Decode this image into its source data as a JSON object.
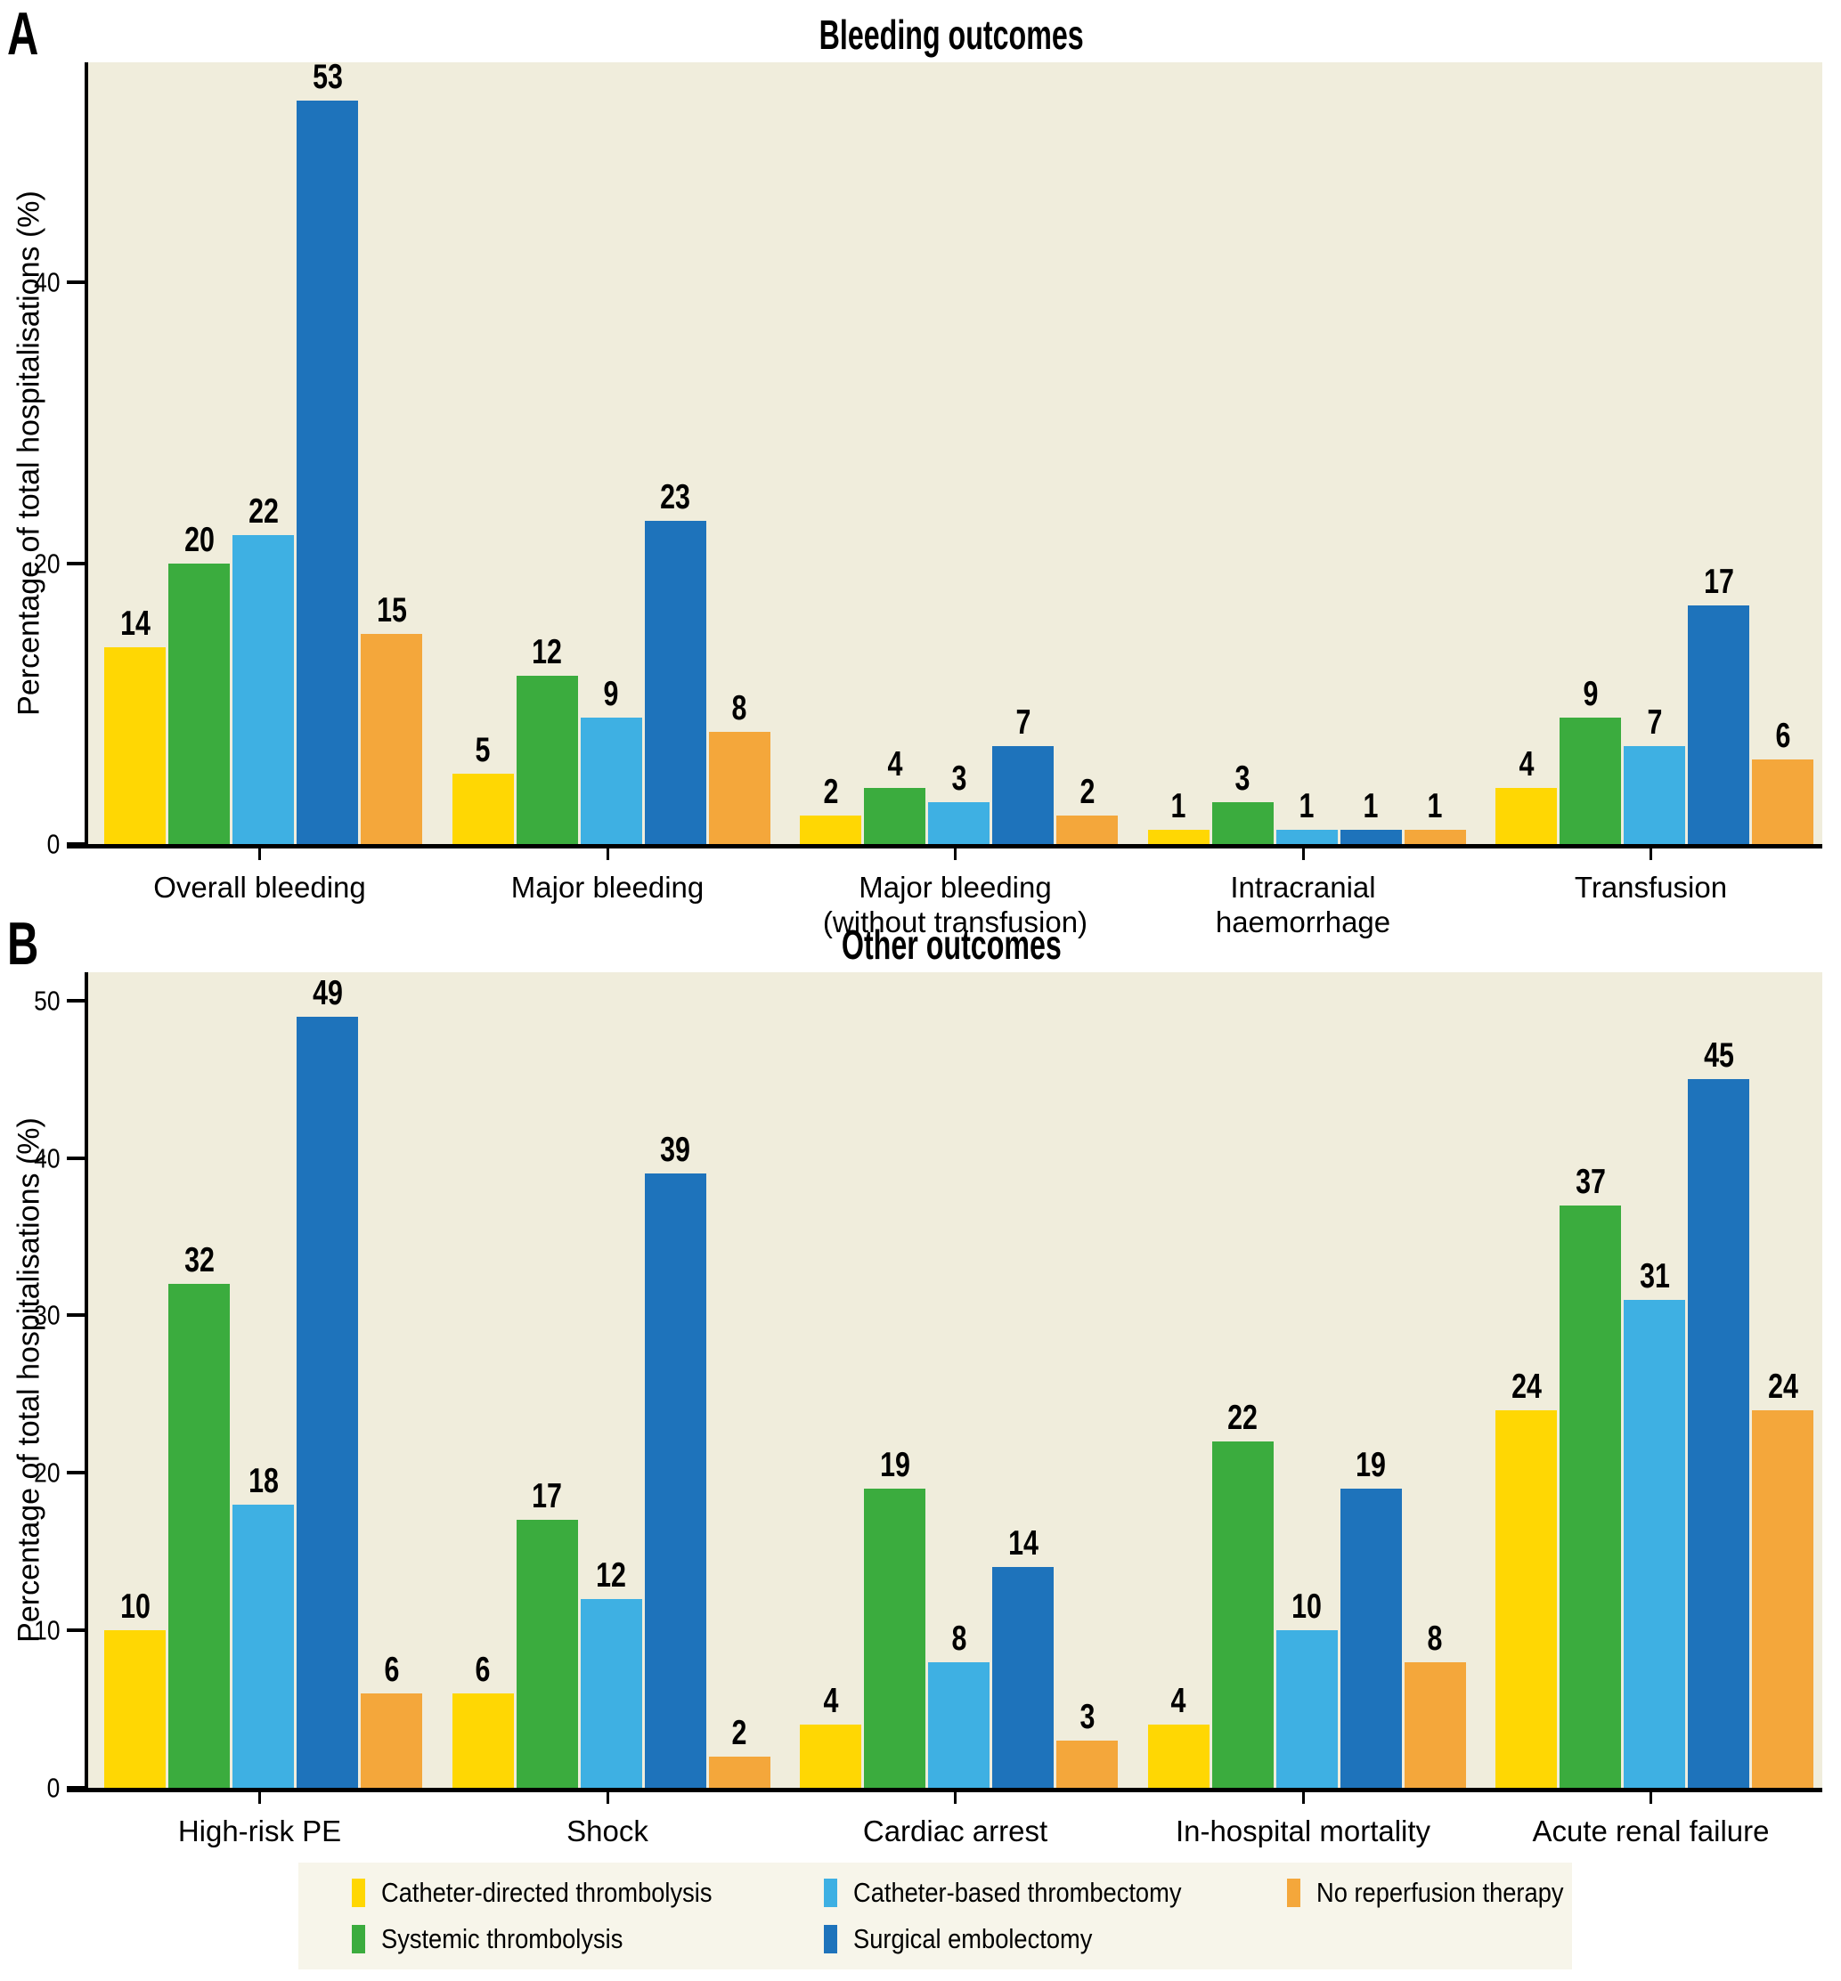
{
  "figure": {
    "panel_a_letter": "A",
    "panel_b_letter": "B"
  },
  "colors": {
    "catheter_directed_thrombolysis": "#FFD703",
    "systemic_thrombolysis": "#3BAC3E",
    "catheter_based_thrombectomy": "#3EB0E3",
    "surgical_embolectomy": "#1E73BB",
    "no_reperfusion_therapy": "#F4A73B",
    "plot_background": "#F0EDDC",
    "legend_background": "#F7F5EA",
    "axis": "#000000"
  },
  "chart_data": [
    {
      "type": "bar",
      "panel": "A",
      "title": "Bleeding outcomes",
      "ylabel": "Percentage of total hospitalisations (%)",
      "ylim": [
        0,
        55.7
      ],
      "yticks": [
        0,
        20,
        40
      ],
      "grid": false,
      "categories": [
        "Overall bleeding",
        "Major bleeding",
        "Major bleeding (without transfusion)",
        "Intracranial haemorrhage",
        "Transfusion"
      ],
      "category_lines": [
        [
          "Overall bleeding"
        ],
        [
          "Major bleeding"
        ],
        [
          "Major bleeding",
          "(without transfusion)"
        ],
        [
          "Intracranial haemorrhage"
        ],
        [
          "Transfusion"
        ]
      ],
      "series": [
        {
          "name": "Catheter-directed thrombolysis",
          "color": "#FFD703",
          "values": [
            14,
            5,
            2,
            1,
            4
          ]
        },
        {
          "name": "Systemic thrombolysis",
          "color": "#3BAC3E",
          "values": [
            20,
            12,
            4,
            3,
            9
          ]
        },
        {
          "name": "Catheter-based thrombectomy",
          "color": "#3EB0E3",
          "values": [
            22,
            9,
            3,
            1,
            7
          ]
        },
        {
          "name": "Surgical embolectomy",
          "color": "#1E73BB",
          "values": [
            53,
            23,
            7,
            1,
            17
          ]
        },
        {
          "name": "No reperfusion therapy",
          "color": "#F4A73B",
          "values": [
            15,
            8,
            2,
            1,
            6
          ]
        }
      ]
    },
    {
      "type": "bar",
      "panel": "B",
      "title": "Other outcomes",
      "ylabel": "Percentage of total hospitalisations (%)",
      "ylim": [
        0,
        51.8
      ],
      "yticks": [
        0,
        10,
        20,
        30,
        40,
        50
      ],
      "grid": false,
      "categories": [
        "High-risk PE",
        "Shock",
        "Cardiac arrest",
        "In-hospital mortality",
        "Acute renal failure"
      ],
      "category_lines": [
        [
          "High-risk PE"
        ],
        [
          "Shock"
        ],
        [
          "Cardiac arrest"
        ],
        [
          "In-hospital mortality"
        ],
        [
          "Acute renal failure"
        ]
      ],
      "series": [
        {
          "name": "Catheter-directed thrombolysis",
          "color": "#FFD703",
          "values": [
            10,
            6,
            4,
            4,
            24
          ]
        },
        {
          "name": "Systemic thrombolysis",
          "color": "#3BAC3E",
          "values": [
            32,
            17,
            19,
            22,
            37
          ]
        },
        {
          "name": "Catheter-based thrombectomy",
          "color": "#3EB0E3",
          "values": [
            18,
            12,
            8,
            10,
            31
          ]
        },
        {
          "name": "Surgical embolectomy",
          "color": "#1E73BB",
          "values": [
            49,
            39,
            14,
            19,
            45
          ]
        },
        {
          "name": "No reperfusion therapy",
          "color": "#F4A73B",
          "values": [
            6,
            2,
            3,
            8,
            24
          ]
        }
      ]
    }
  ],
  "legend": {
    "items": [
      {
        "label": "Catheter-directed thrombolysis",
        "color": "#FFD703"
      },
      {
        "label": "Catheter-based thrombectomy",
        "color": "#3EB0E3"
      },
      {
        "label": "No reperfusion therapy",
        "color": "#F4A73B"
      },
      {
        "label": "Systemic thrombolysis",
        "color": "#3BAC3E"
      },
      {
        "label": "Surgical embolectomy",
        "color": "#1E73BB"
      }
    ]
  }
}
